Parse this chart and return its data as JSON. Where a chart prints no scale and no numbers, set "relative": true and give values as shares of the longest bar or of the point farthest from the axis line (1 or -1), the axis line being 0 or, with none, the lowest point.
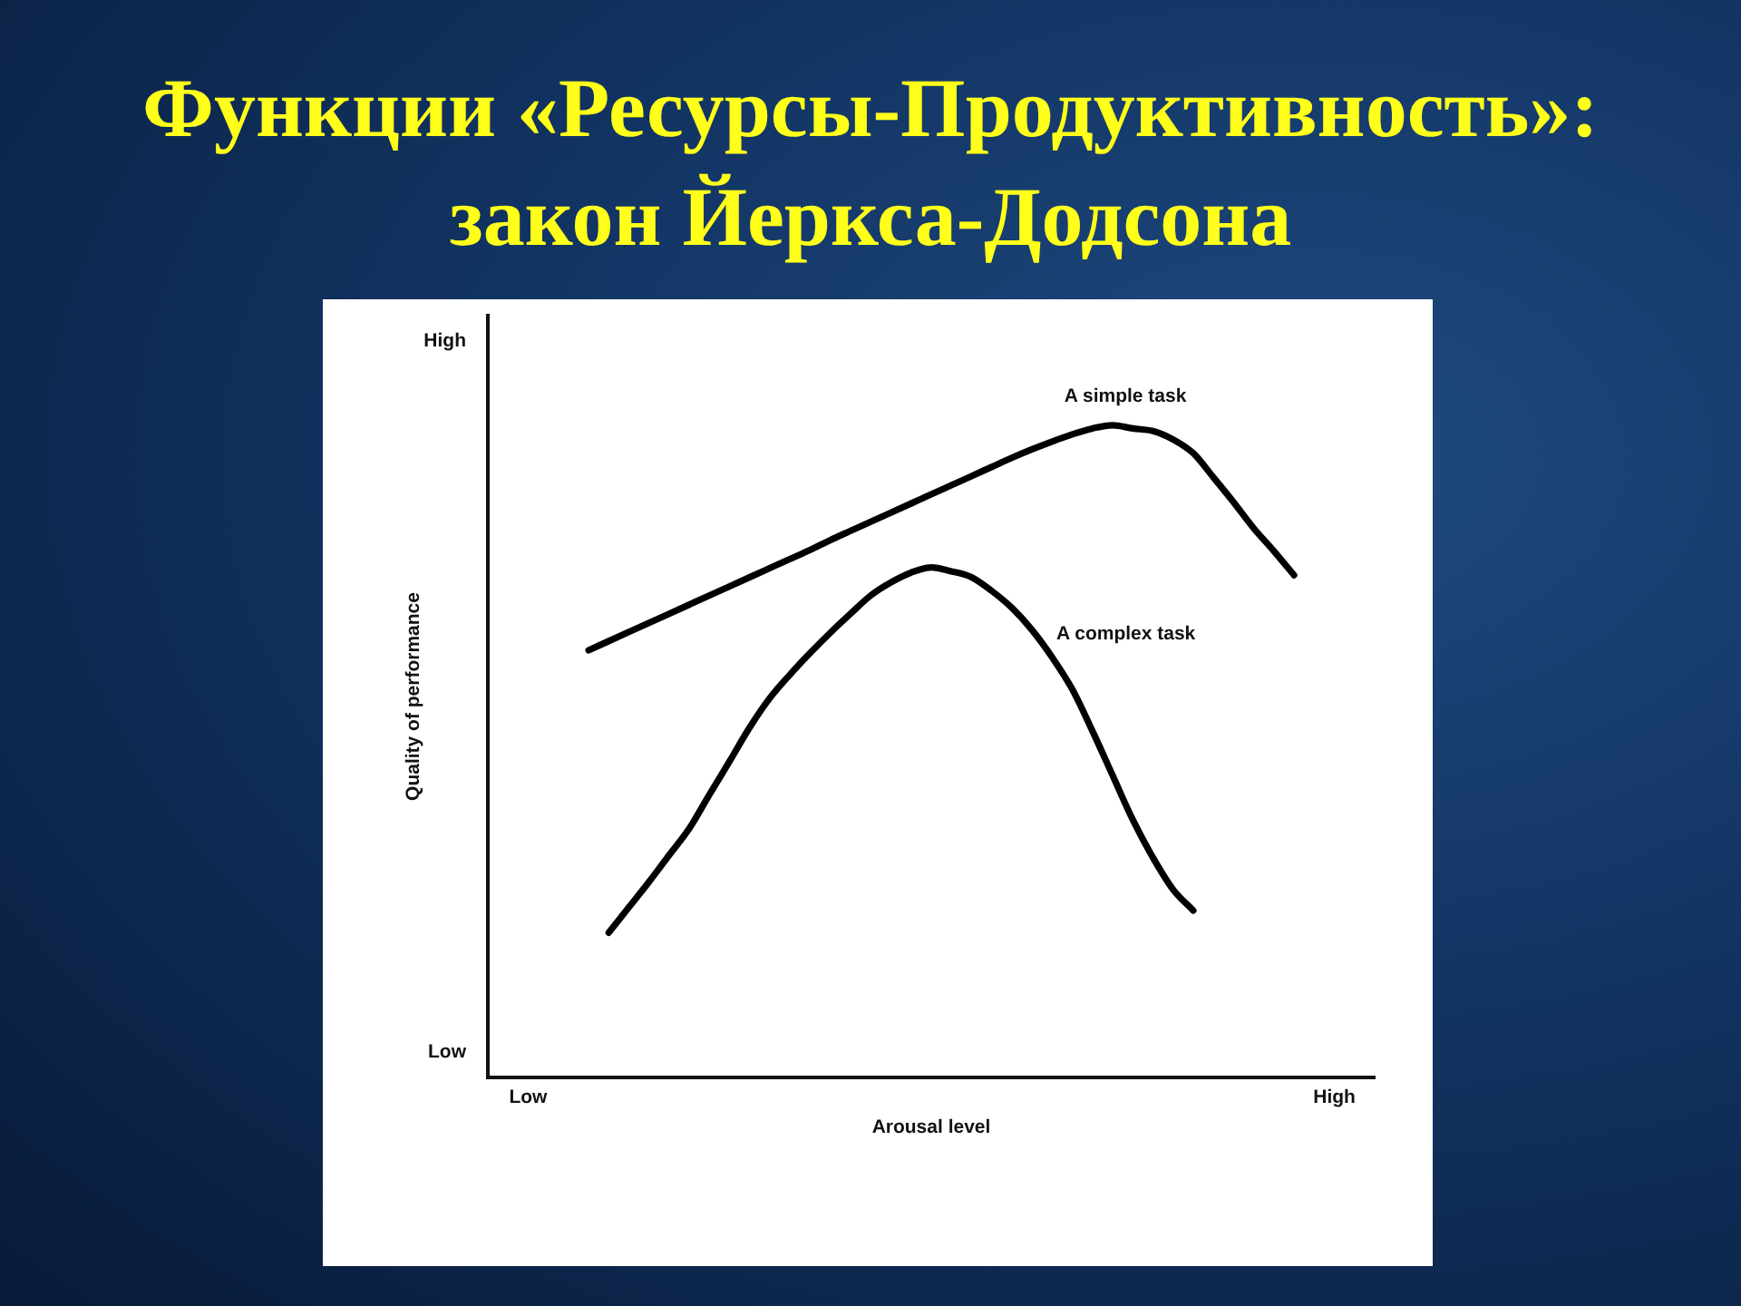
{
  "chart_data": {
    "type": "line",
    "title": "Функции «Ресурсы-Продуктивность»: закон Йеркса-Додсона",
    "xlabel": "Arousal level",
    "ylabel": "Quality of performance",
    "annotations": [
      "High",
      "Low"
    ],
    "relative": true,
    "marker": "none",
    "line_style": "solid",
    "grid": false,
    "legend": false,
    "categories": [
      null,
      null,
      "Low",
      null,
      null,
      null,
      null,
      null,
      null,
      null,
      null,
      null,
      null,
      null,
      null,
      null,
      null,
      null,
      null,
      null,
      null,
      null,
      null,
      null,
      null,
      null,
      null,
      null,
      null,
      null,
      null,
      null,
      null,
      null,
      null,
      null,
      null,
      null,
      null,
      null,
      null,
      null,
      "High",
      null,
      null
    ],
    "series": [
      {
        "name": "A simple task",
        "color": "#000000",
        "values": [
          null,
          null,
          null,
          null,
          null,
          0.655,
          0.669,
          0.683,
          0.697,
          0.711,
          0.725,
          0.739,
          0.753,
          0.767,
          0.781,
          0.795,
          0.809,
          0.824,
          0.838,
          0.852,
          0.866,
          0.88,
          0.894,
          0.908,
          0.922,
          0.936,
          0.95,
          0.963,
          0.975,
          0.986,
          0.995,
          1,
          0.995,
          0.991,
          0.978,
          0.957,
          0.92,
          0.882,
          0.842,
          0.807,
          0.77,
          null,
          null,
          null,
          null
        ]
      },
      {
        "name": "A complex task",
        "color": "#000000",
        "values": [
          null,
          null,
          null,
          null,
          null,
          null,
          0.222,
          0.261,
          0.3,
          0.341,
          0.382,
          0.434,
          0.485,
          0.537,
          0.582,
          0.618,
          0.651,
          0.682,
          0.711,
          0.739,
          0.759,
          0.774,
          0.782,
          0.776,
          0.767,
          0.746,
          0.72,
          0.686,
          0.644,
          0.595,
          0.531,
          0.463,
          0.395,
          0.337,
          0.288,
          0.256,
          null,
          null,
          null,
          null,
          null,
          null,
          null,
          null,
          null
        ]
      }
    ]
  }
}
